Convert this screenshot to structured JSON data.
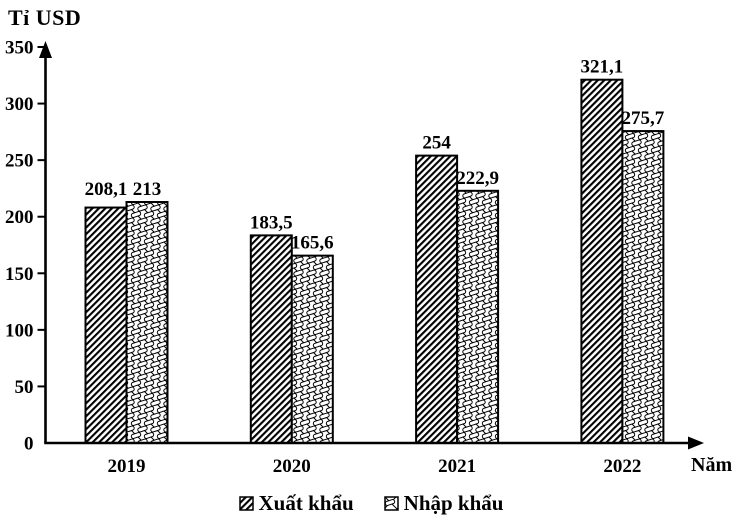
{
  "chart_data": {
    "type": "bar",
    "title": "",
    "categories": [
      "2019",
      "2020",
      "2021",
      "2022"
    ],
    "series": [
      {
        "name": "Xuất khẩu",
        "values": [
          208.1,
          183.5,
          254,
          321.1
        ],
        "labels": [
          "208,1",
          "183,5",
          "254",
          "321,1"
        ],
        "pattern": "diagonal-hatch"
      },
      {
        "name": "Nhập khẩu",
        "values": [
          213,
          165.6,
          222.9,
          275.7
        ],
        "labels": [
          "213",
          "165,6",
          "222,9",
          "275,7"
        ],
        "pattern": "diagonal-weave"
      }
    ],
    "ylabel": "Tỉ USD",
    "xlabel": "Năm",
    "ylim": [
      0,
      350
    ],
    "yticks": [
      0,
      50,
      100,
      150,
      200,
      250,
      300,
      350
    ],
    "grid": false,
    "legend_position": "bottom"
  },
  "colors": {
    "foreground": "#000000",
    "background": "#ffffff"
  }
}
